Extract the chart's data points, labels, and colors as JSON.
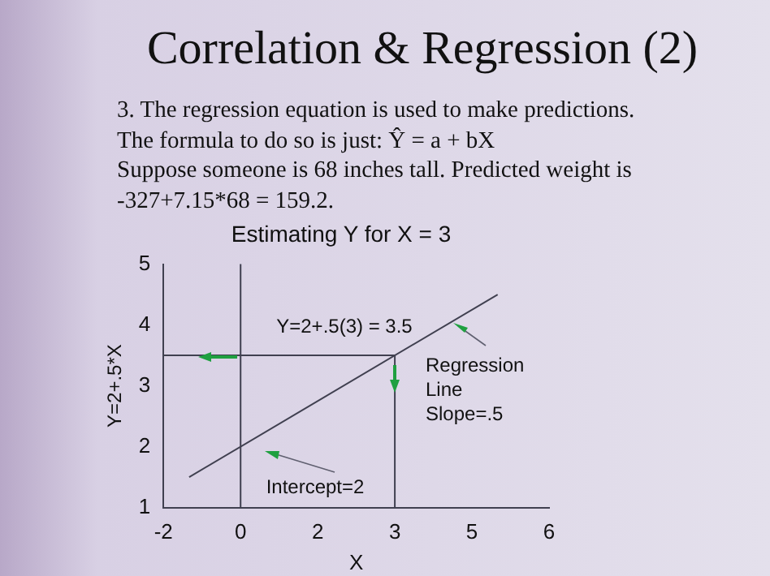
{
  "chart_data": {
    "type": "line",
    "title": "Correlation & Regression (2)",
    "subtitle": "Estimating Y for X = 3",
    "xlabel": "X",
    "ylabel": "Y=2+.5*X",
    "annotations": [
      "3.   The regression equation is used to make predictions.",
      "The formula to do so is just:   Ŷ = a + bX",
      "Suppose someone is 68 inches tall.  Predicted weight is",
      "-327+7.15*68 = 159.2.",
      "Y=2+.5(3) = 3.5",
      "Regression\nLine\nSlope=.5",
      "Intercept=2"
    ],
    "series": [
      {
        "type": "line",
        "color": "#404050",
        "x": [
          -1,
          5
        ],
        "values": [
          1.5,
          4.5
        ]
      },
      {
        "type": "line",
        "color": "#404050",
        "x": [
          -1.5,
          3
        ],
        "values": [
          3.5,
          3.5
        ]
      },
      {
        "type": "line",
        "color": "#404050",
        "x": [
          3,
          3
        ],
        "values": [
          1,
          3.5
        ]
      }
    ],
    "ref_lines": [
      {
        "axis": "x",
        "value": 0,
        "color": "#404050"
      }
    ],
    "xlim": [
      -1.5,
      6
    ],
    "xticks": [
      {
        "value": -1.5,
        "label": "-2"
      },
      0,
      {
        "value": 1.5,
        "label": "2"
      },
      3,
      {
        "value": 4.5,
        "label": "5"
      },
      6
    ],
    "ylim": [
      1,
      5
    ],
    "yticks": [
      1,
      2,
      3,
      4,
      5
    ],
    "grid": false,
    "legend": false,
    "marker": "none"
  }
}
